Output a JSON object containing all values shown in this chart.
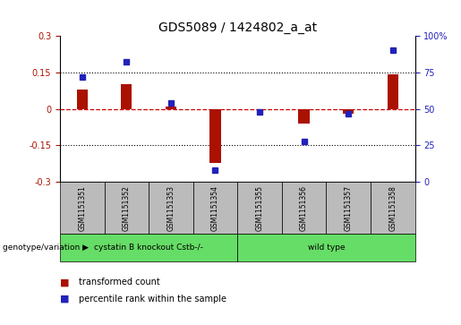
{
  "title": "GDS5089 / 1424802_a_at",
  "samples": [
    "GSM1151351",
    "GSM1151352",
    "GSM1151353",
    "GSM1151354",
    "GSM1151355",
    "GSM1151356",
    "GSM1151357",
    "GSM1151358"
  ],
  "red_bars": [
    0.08,
    0.1,
    0.01,
    -0.22,
    0.0,
    -0.06,
    -0.02,
    0.14
  ],
  "blue_dots": [
    72,
    82,
    54,
    8,
    48,
    28,
    47,
    90
  ],
  "ylim_left": [
    -0.3,
    0.3
  ],
  "ylim_right": [
    0,
    100
  ],
  "left_yticks": [
    -0.3,
    -0.15,
    0,
    0.15,
    0.3
  ],
  "right_yticks": [
    0,
    25,
    50,
    75,
    100
  ],
  "groups": [
    {
      "label": "cystatin B knockout Cstb-/-",
      "indices": [
        0,
        1,
        2,
        3
      ],
      "color": "#66DD66"
    },
    {
      "label": "wild type",
      "indices": [
        4,
        5,
        6,
        7
      ],
      "color": "#66DD66"
    }
  ],
  "group_row_label": "genotype/variation",
  "legend_red_label": "transformed count",
  "legend_blue_label": "percentile rank within the sample",
  "bar_color": "#AA1100",
  "dot_color": "#2222BB",
  "bar_width": 0.25,
  "hline_color": "#CC0000",
  "grid_color": "black",
  "sample_box_color": "#BBBBBB",
  "title_fontsize": 10
}
